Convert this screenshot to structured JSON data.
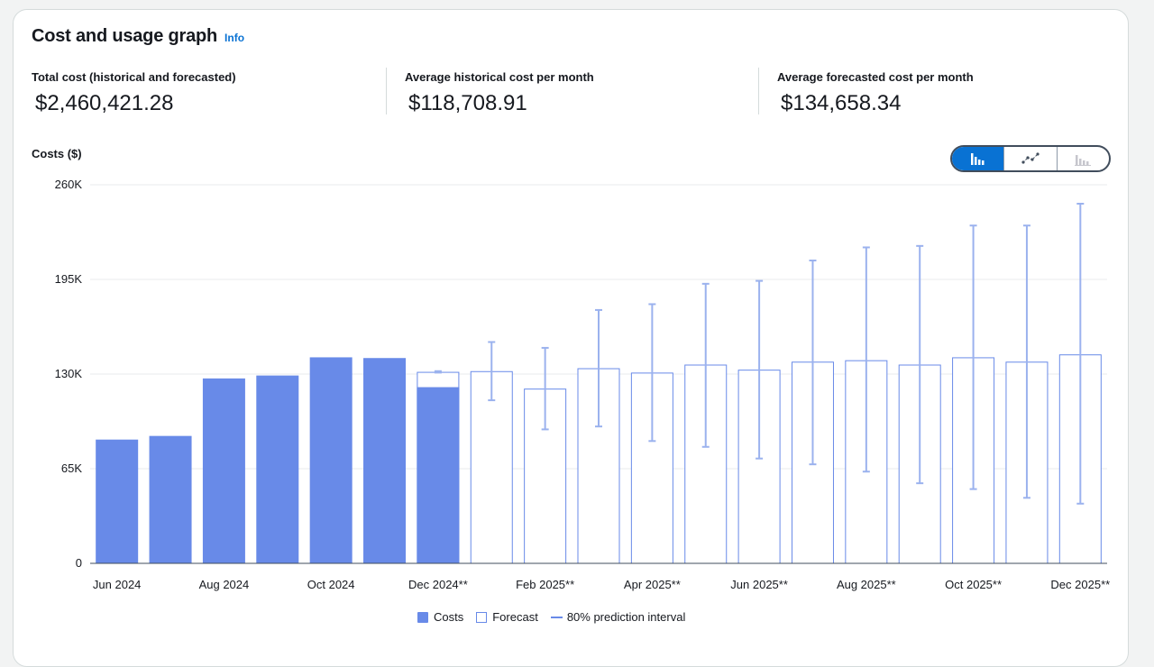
{
  "panel": {
    "title": "Cost and usage graph",
    "info_label": "Info"
  },
  "metrics": [
    {
      "label": "Total cost (historical and forecasted)",
      "value": "$2,460,421.28"
    },
    {
      "label": "Average historical cost per month",
      "value": "$118,708.91"
    },
    {
      "label": "Average forecasted cost per month",
      "value": "$134,658.34"
    }
  ],
  "chart_toggle": {
    "options": [
      "bar-chart-icon",
      "line-chart-icon",
      "stacked-bar-chart-icon"
    ],
    "selected": "bar-chart-icon"
  },
  "legend": {
    "costs": "Costs",
    "forecast": "Forecast",
    "interval": "80% prediction interval"
  },
  "colors": {
    "accent": "#0972d3",
    "cost": "#688ae8",
    "interval": "#9bb2ee",
    "grid": "#e9ebed"
  },
  "chart_data": {
    "type": "bar",
    "ylabel": "Costs ($)",
    "ylim": [
      0,
      260000
    ],
    "yticks": [
      0,
      65000,
      130000,
      195000,
      260000
    ],
    "ytick_labels": [
      "0",
      "65K",
      "130K",
      "195K",
      "260K"
    ],
    "categories": [
      "Jun 2024",
      "Jul 2024",
      "Aug 2024",
      "Sep 2024",
      "Oct 2024",
      "Nov 2024",
      "Dec 2024**",
      "Jan 2025**",
      "Feb 2025**",
      "Mar 2025**",
      "Apr 2025**",
      "May 2025**",
      "Jun 2025**",
      "Jul 2025**",
      "Aug 2025**",
      "Sep 2025**",
      "Oct 2025**",
      "Nov 2025**",
      "Dec 2025**"
    ],
    "xtick_labels": [
      "Jun 2024",
      "Aug 2024",
      "Oct 2024",
      "Dec 2024**",
      "Feb 2025**",
      "Apr 2025**",
      "Jun 2025**",
      "Aug 2025**",
      "Oct 2025**",
      "Dec 2025**"
    ],
    "series": [
      {
        "name": "Costs",
        "values": [
          85000,
          87500,
          127000,
          129000,
          141500,
          141000,
          121000,
          null,
          null,
          null,
          null,
          null,
          null,
          null,
          null,
          null,
          null,
          null,
          null
        ]
      },
      {
        "name": "Forecast",
        "values": [
          null,
          null,
          null,
          null,
          null,
          null,
          131500,
          132000,
          120000,
          134000,
          131000,
          136500,
          133000,
          138500,
          139500,
          136500,
          141500,
          138500,
          143500
        ]
      },
      {
        "name": "80% prediction interval",
        "low": [
          null,
          null,
          null,
          null,
          null,
          null,
          131000,
          112000,
          92000,
          94000,
          84000,
          80000,
          72000,
          68000,
          63000,
          55000,
          51000,
          45000,
          41000
        ],
        "high": [
          null,
          null,
          null,
          null,
          null,
          null,
          132000,
          152000,
          148000,
          174000,
          178000,
          192000,
          194000,
          208000,
          217000,
          218000,
          232000,
          232000,
          247000
        ]
      }
    ]
  }
}
